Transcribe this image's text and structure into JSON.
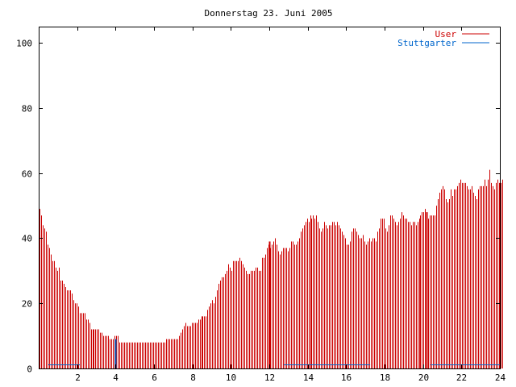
{
  "chart_data": {
    "type": "bar",
    "title": "Donnerstag 23. Juni 2005",
    "xlabel": "",
    "ylabel": "",
    "xlim": [
      0,
      24
    ],
    "ylim": [
      0,
      105
    ],
    "x_ticks": [
      2,
      4,
      6,
      8,
      10,
      12,
      14,
      16,
      18,
      20,
      22,
      24
    ],
    "y_ticks": [
      0,
      20,
      40,
      60,
      80,
      100
    ],
    "grid": false,
    "legend_position": "top-right",
    "bin_width_hours": 0.0833,
    "series": [
      {
        "name": "User",
        "color": "#cc0000",
        "values": [
          49,
          47,
          44,
          43,
          42,
          38,
          37,
          35,
          33,
          33,
          31,
          30,
          31,
          27,
          27,
          26,
          25,
          24,
          24,
          24,
          23,
          21,
          20,
          20,
          19,
          17,
          17,
          17,
          17,
          15,
          15,
          14,
          12,
          12,
          12,
          12,
          12,
          12,
          11,
          11,
          10,
          10,
          10,
          10,
          9,
          9,
          9,
          10,
          10,
          10,
          8,
          8,
          8,
          8,
          8,
          8,
          8,
          8,
          8,
          8,
          8,
          8,
          8,
          8,
          8,
          8,
          8,
          8,
          8,
          8,
          8,
          8,
          8,
          8,
          8,
          8,
          8,
          8,
          8,
          9,
          9,
          9,
          9,
          9,
          9,
          9,
          9,
          10,
          11,
          12,
          13,
          14,
          13,
          13,
          13,
          14,
          14,
          14,
          14,
          15,
          15,
          16,
          16,
          16,
          16,
          18,
          19,
          20,
          21,
          20,
          22,
          24,
          26,
          27,
          28,
          28,
          29,
          30,
          32,
          31,
          30,
          33,
          33,
          33,
          33,
          34,
          33,
          32,
          31,
          30,
          29,
          29,
          30,
          30,
          30,
          31,
          31,
          30,
          30,
          34,
          34,
          35,
          37,
          38,
          37,
          38,
          39,
          40,
          38,
          36,
          35,
          36,
          37,
          37,
          37,
          36,
          37,
          39,
          39,
          38,
          38,
          39,
          40,
          42,
          43,
          44,
          45,
          46,
          45,
          47,
          46,
          47,
          46,
          47,
          45,
          43,
          42,
          43,
          45,
          44,
          43,
          44,
          44,
          45,
          45,
          44,
          45,
          44,
          43,
          42,
          41,
          40,
          38,
          38,
          39,
          42,
          43,
          43,
          42,
          41,
          40,
          40,
          41,
          39,
          38,
          39,
          40,
          39,
          40,
          40,
          39,
          42,
          43,
          46,
          46,
          46,
          43,
          42,
          44,
          47,
          47,
          46,
          45,
          44,
          45,
          46,
          48,
          47,
          46,
          46,
          45,
          45,
          44,
          45,
          45,
          44,
          45,
          46,
          47,
          48,
          48,
          49,
          47,
          46,
          47,
          47,
          47,
          47,
          50,
          52,
          54,
          55,
          56,
          55,
          52,
          51,
          52,
          55,
          53,
          55,
          55,
          56,
          57,
          58,
          57,
          57,
          57,
          56,
          55,
          55,
          56,
          54,
          53,
          52,
          55,
          56,
          56,
          56,
          58,
          56,
          58,
          61,
          57,
          56,
          55,
          57,
          58,
          57,
          57,
          58
        ]
      },
      {
        "name": "Stuttgarter",
        "color": "#0066cc",
        "segments": [
          [
            0.5,
            2.15
          ],
          [
            12.75,
            17.25
          ],
          [
            20.4,
            24.0
          ]
        ],
        "value": 1
      }
    ],
    "spikes": [
      {
        "x": 4.0,
        "value": 9,
        "color": "#0066cc"
      },
      {
        "x": 12.0,
        "value": 39,
        "color": "#cc0000"
      },
      {
        "x": 20.2,
        "value": 48,
        "color": "#cc0000"
      }
    ]
  }
}
